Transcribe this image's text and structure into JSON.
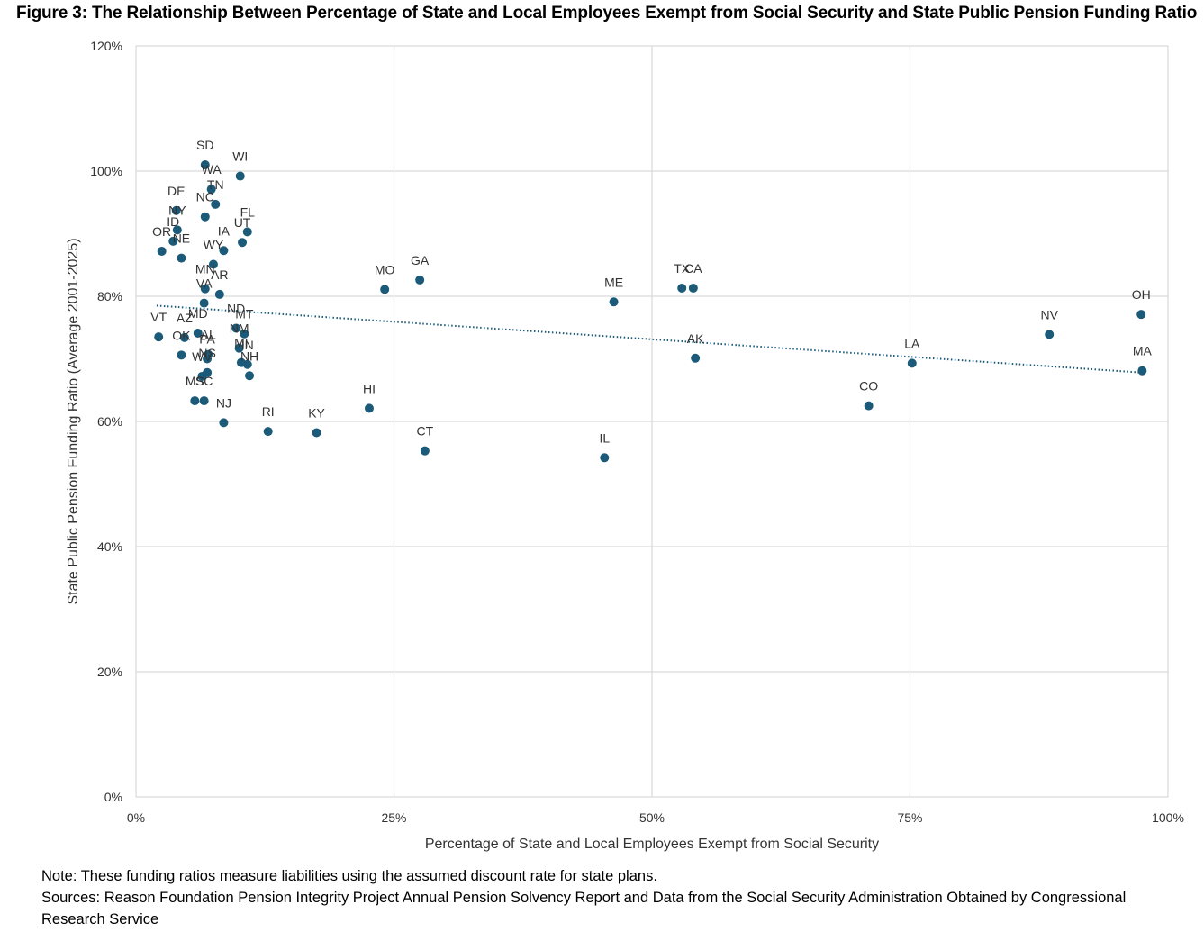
{
  "title": "Figure 3: The Relationship Between Percentage of State and Local Employees Exempt from Social Security and State Public Pension Funding Ratio",
  "note": "Note: These funding ratios measure liabilities using the assumed discount rate for state plans.",
  "sources": "Sources: Reason Foundation Pension Integrity Project Annual Pension Solvency Report and Data from the Social Security Administration Obtained by Congressional Research Service",
  "colors": {
    "point": "#1b5a78",
    "trendline": "#1b5a78",
    "grid": "#d9d9d9"
  },
  "chart_data": {
    "type": "scatter",
    "xlabel": "Percentage of State and Local Employees Exempt from Social Security",
    "ylabel": "State Public Pension Funding Ratio (Average 2001-2025)",
    "xlim": [
      0,
      100
    ],
    "ylim": [
      0,
      120
    ],
    "x_ticks": [
      "0%",
      "25%",
      "50%",
      "75%",
      "100%"
    ],
    "y_ticks": [
      "0%",
      "20%",
      "40%",
      "60%",
      "80%",
      "100%",
      "120%"
    ],
    "grid": true,
    "trendline": {
      "style": "dotted",
      "x": [
        2,
        97.5
      ],
      "y": [
        78.5,
        67.8
      ]
    },
    "points": [
      {
        "label": "SD",
        "x": 6.7,
        "y": 101
      },
      {
        "label": "WI",
        "x": 10.1,
        "y": 99.2
      },
      {
        "label": "WA",
        "x": 7.3,
        "y": 97.1
      },
      {
        "label": "TN",
        "x": 7.7,
        "y": 94.7
      },
      {
        "label": "DE",
        "x": 3.9,
        "y": 93.7
      },
      {
        "label": "NC",
        "x": 6.7,
        "y": 92.7
      },
      {
        "label": "NY",
        "x": 4.0,
        "y": 90.6
      },
      {
        "label": "ID",
        "x": 3.6,
        "y": 88.8
      },
      {
        "label": "FL",
        "x": 10.8,
        "y": 90.3
      },
      {
        "label": "UT",
        "x": 10.3,
        "y": 88.6
      },
      {
        "label": "OR",
        "x": 2.5,
        "y": 87.2
      },
      {
        "label": "NE",
        "x": 4.4,
        "y": 86.1
      },
      {
        "label": "IA",
        "x": 8.5,
        "y": 87.3
      },
      {
        "label": "WY",
        "x": 7.5,
        "y": 85.1
      },
      {
        "label": "MN",
        "x": 6.7,
        "y": 81.2
      },
      {
        "label": "AR",
        "x": 8.1,
        "y": 80.3
      },
      {
        "label": "VA",
        "x": 6.6,
        "y": 78.9
      },
      {
        "label": "MO",
        "x": 24.1,
        "y": 81.1
      },
      {
        "label": "GA",
        "x": 27.5,
        "y": 82.6
      },
      {
        "label": "ME",
        "x": 46.3,
        "y": 79.1
      },
      {
        "label": "TX",
        "x": 52.9,
        "y": 81.3
      },
      {
        "label": "CA",
        "x": 54.0,
        "y": 81.3
      },
      {
        "label": "OH",
        "x": 97.4,
        "y": 77.1
      },
      {
        "label": "ND",
        "x": 9.7,
        "y": 74.9
      },
      {
        "label": "MT",
        "x": 10.5,
        "y": 74.0
      },
      {
        "label": "MD",
        "x": 6.0,
        "y": 74.1
      },
      {
        "label": "AZ",
        "x": 4.7,
        "y": 73.4
      },
      {
        "label": "VT",
        "x": 2.2,
        "y": 73.5
      },
      {
        "label": "NM",
        "x": 10.0,
        "y": 71.7
      },
      {
        "label": "OK",
        "x": 4.4,
        "y": 70.6
      },
      {
        "label": "AL",
        "x": 7.0,
        "y": 70.7
      },
      {
        "label": "PA",
        "x": 6.9,
        "y": 70.0
      },
      {
        "label": "MI",
        "x": 10.2,
        "y": 69.4
      },
      {
        "label": "IN",
        "x": 10.8,
        "y": 69.1
      },
      {
        "label": "NH",
        "x": 11.0,
        "y": 67.3
      },
      {
        "label": "WV",
        "x": 6.4,
        "y": 67.2
      },
      {
        "label": "NS",
        "x": 6.9,
        "y": 67.8
      },
      {
        "label": "MS",
        "x": 5.7,
        "y": 63.3
      },
      {
        "label": "SC",
        "x": 6.6,
        "y": 63.3
      },
      {
        "label": "NJ",
        "x": 8.5,
        "y": 59.8
      },
      {
        "label": "RI",
        "x": 12.8,
        "y": 58.4
      },
      {
        "label": "KY",
        "x": 17.5,
        "y": 58.2
      },
      {
        "label": "HI",
        "x": 22.6,
        "y": 62.1
      },
      {
        "label": "CT",
        "x": 28.0,
        "y": 55.3
      },
      {
        "label": "IL",
        "x": 45.4,
        "y": 54.2
      },
      {
        "label": "AK",
        "x": 54.2,
        "y": 70.1
      },
      {
        "label": "NV",
        "x": 88.5,
        "y": 73.9
      },
      {
        "label": "LA",
        "x": 75.2,
        "y": 69.3
      },
      {
        "label": "MA",
        "x": 97.5,
        "y": 68.1
      },
      {
        "label": "CO",
        "x": 71.0,
        "y": 62.5
      }
    ]
  }
}
